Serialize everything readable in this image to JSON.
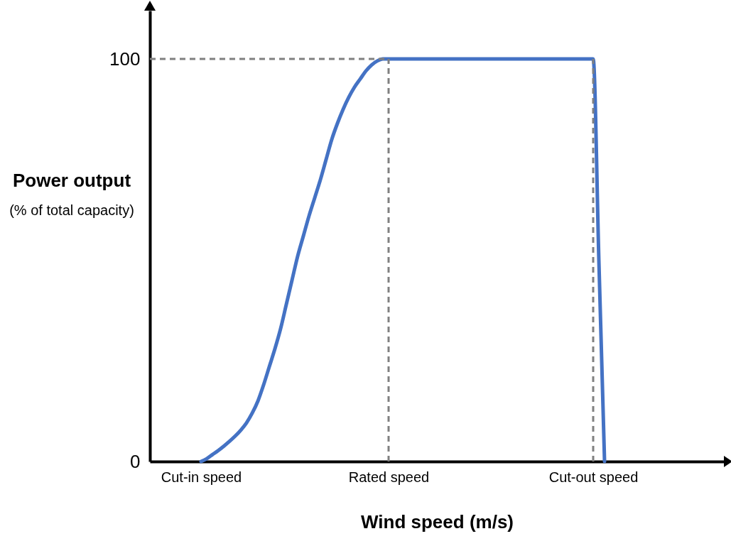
{
  "chart_data": {
    "type": "line",
    "xlabel": "Wind speed (m/s)",
    "ylabel": "Power output (% of total capacity)",
    "categories": [
      null,
      null,
      null,
      null,
      null,
      null,
      null,
      null,
      null,
      "Cut-in speed",
      null,
      null,
      null,
      null,
      null,
      null,
      null,
      null,
      null,
      null,
      null,
      null,
      null,
      null,
      null,
      null,
      null,
      null,
      null,
      null,
      null,
      null,
      null,
      null,
      null,
      null,
      null,
      null,
      null,
      null,
      null,
      null,
      "Rated speed",
      null,
      null,
      null,
      null,
      null,
      null,
      null,
      null,
      null,
      null,
      null,
      null,
      null,
      null,
      null,
      null,
      null,
      null,
      null,
      null,
      null,
      null,
      null,
      null,
      null,
      null,
      null,
      null,
      null,
      null,
      null,
      null,
      null,
      null,
      null,
      "Cut-out speed",
      null,
      null,
      null,
      null,
      null,
      null,
      null,
      null,
      null,
      null,
      null,
      null,
      null,
      null,
      null,
      null,
      null,
      null,
      null,
      null,
      null,
      null,
      null
    ],
    "series": [
      {
        "color": "#4472c4",
        "values": [
          null,
          null,
          null,
          null,
          null,
          null,
          null,
          null,
          null,
          0,
          0.7,
          1.7,
          2.7,
          3.8,
          5,
          6.3,
          7.8,
          9.6,
          12,
          15,
          19,
          23.5,
          28,
          33,
          39,
          45,
          51,
          56,
          61,
          65.5,
          70,
          75,
          80,
          84,
          87.5,
          90.5,
          93,
          95,
          97,
          98.5,
          99.5,
          100,
          100,
          100,
          100,
          100,
          100,
          100,
          100,
          100,
          100,
          100,
          100,
          100,
          100,
          100,
          100,
          100,
          100,
          100,
          100,
          100,
          100,
          100,
          100,
          100,
          100,
          100,
          100,
          100,
          100,
          100,
          100,
          100,
          100,
          100,
          100,
          100,
          100,
          50,
          0,
          null,
          null,
          null,
          null,
          null,
          null,
          null,
          null,
          null,
          null,
          null,
          null,
          null,
          null,
          null,
          null,
          null,
          null,
          null,
          null,
          null
        ]
      }
    ],
    "ylim": [
      0,
      112
    ],
    "yticks": [
      0,
      100
    ],
    "grid": false,
    "ref_lines": [
      {
        "axis": "x",
        "value": "Rated speed",
        "color": "#808080",
        "line_style": "dashed"
      },
      {
        "axis": "x",
        "value": "Cut-out speed",
        "color": "#808080",
        "line_style": "dashed"
      },
      {
        "axis": "y",
        "value": 100,
        "color": "#808080",
        "line_style": "dashed"
      }
    ]
  }
}
